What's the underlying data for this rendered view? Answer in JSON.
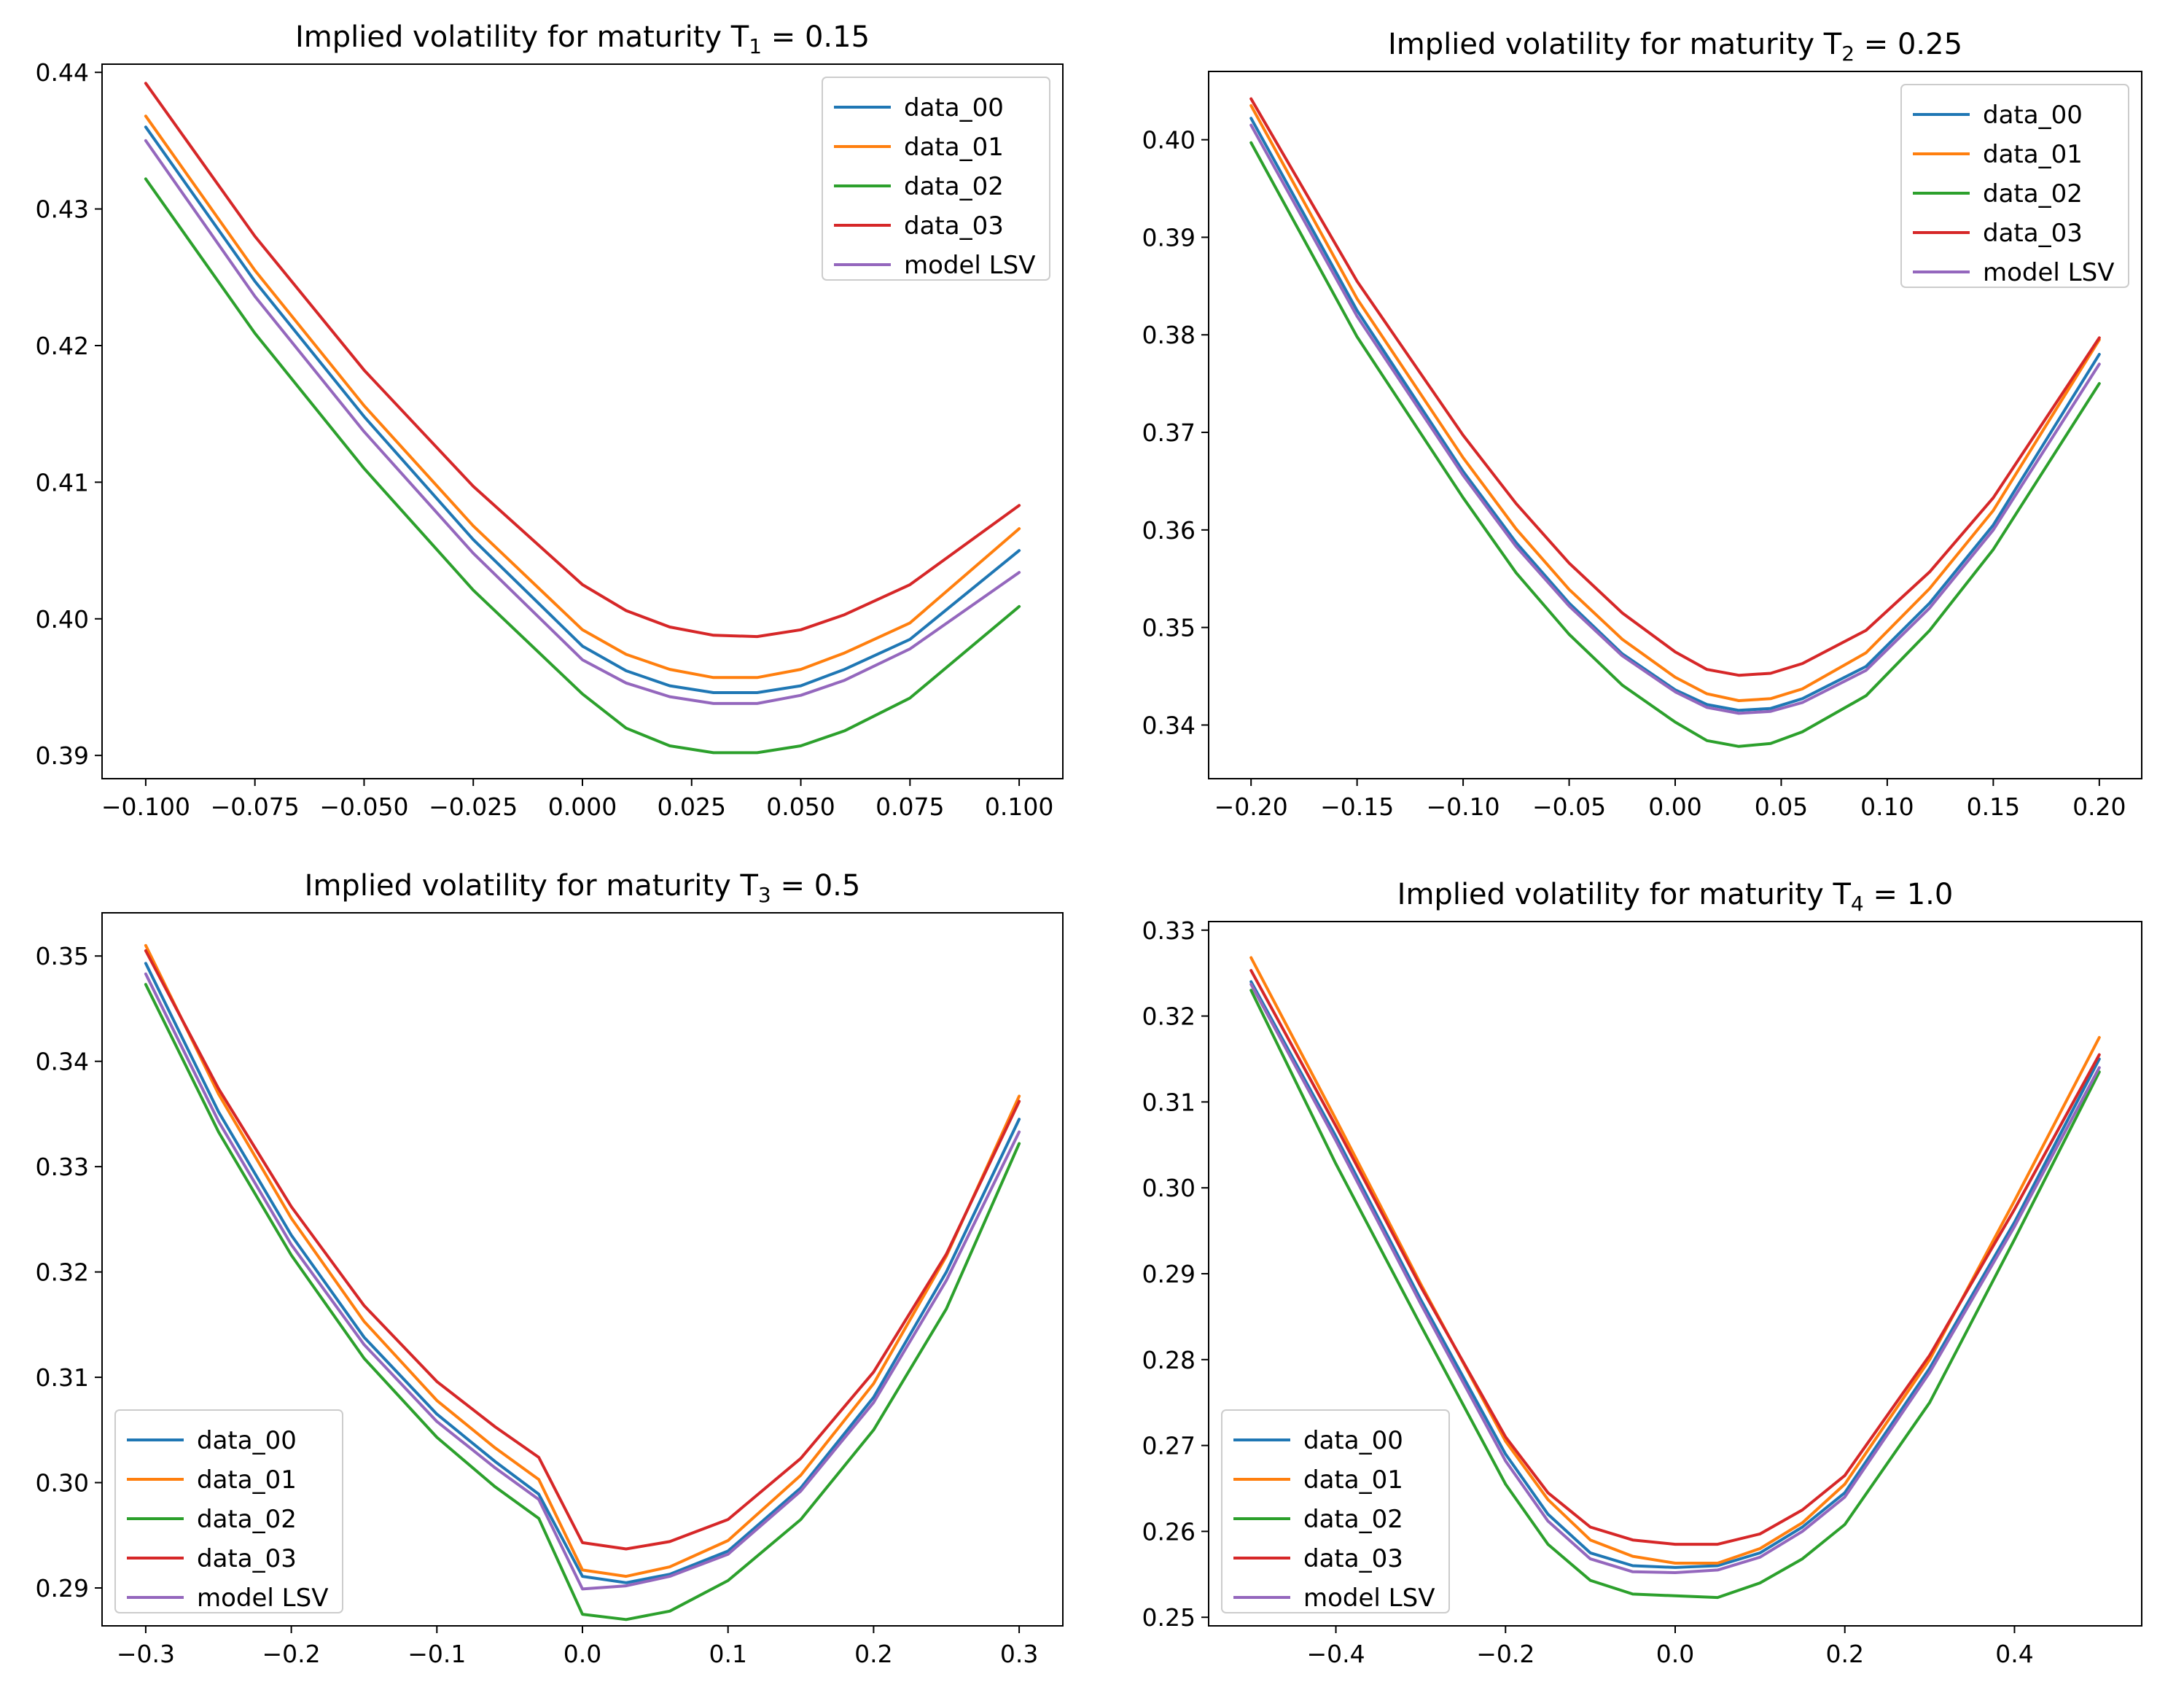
{
  "colors": {
    "data_00": "#1f77b4",
    "data_01": "#ff7f0e",
    "data_02": "#2ca02c",
    "data_03": "#d62728",
    "model_LSV": "#9467bd",
    "axes": "#000000",
    "legend_border": "#cccccc"
  },
  "chart_data": [
    {
      "type": "line",
      "title": "Implied volatility for maturity T",
      "title_sub": "1",
      "title_value": " = 0.15",
      "xlabel": "",
      "ylabel": "",
      "xlim": [
        -0.11,
        0.11
      ],
      "ylim": [
        0.3883,
        0.4406
      ],
      "xticks": [
        -0.1,
        -0.075,
        -0.05,
        -0.025,
        0.0,
        0.025,
        0.05,
        0.075,
        0.1
      ],
      "xtick_labels": [
        "−0.100",
        "−0.075",
        "−0.050",
        "−0.025",
        "0.000",
        "0.025",
        "0.050",
        "0.075",
        "0.100"
      ],
      "yticks": [
        0.39,
        0.4,
        0.41,
        0.42,
        0.43,
        0.44
      ],
      "ytick_labels": [
        "0.39",
        "0.40",
        "0.41",
        "0.42",
        "0.43",
        "0.44"
      ],
      "legend": "top-right",
      "series": [
        {
          "name": "data_00",
          "key": "data_00",
          "x": [
            -0.1,
            -0.075,
            -0.05,
            -0.025,
            0.0,
            0.01,
            0.02,
            0.03,
            0.04,
            0.05,
            0.06,
            0.075,
            0.1
          ],
          "y": [
            0.436,
            0.4247,
            0.4148,
            0.4058,
            0.398,
            0.3962,
            0.3951,
            0.3946,
            0.3946,
            0.3951,
            0.3963,
            0.3985,
            0.405
          ]
        },
        {
          "name": "data_01",
          "key": "data_01",
          "x": [
            -0.1,
            -0.075,
            -0.05,
            -0.025,
            0.0,
            0.01,
            0.02,
            0.03,
            0.04,
            0.05,
            0.06,
            0.075,
            0.1
          ],
          "y": [
            0.4368,
            0.4255,
            0.4156,
            0.4068,
            0.3992,
            0.3974,
            0.3963,
            0.3957,
            0.3957,
            0.3963,
            0.3975,
            0.3997,
            0.4066
          ]
        },
        {
          "name": "data_02",
          "key": "data_02",
          "x": [
            -0.1,
            -0.075,
            -0.05,
            -0.025,
            0.0,
            0.01,
            0.02,
            0.03,
            0.04,
            0.05,
            0.06,
            0.075,
            0.1
          ],
          "y": [
            0.4322,
            0.4209,
            0.411,
            0.4021,
            0.3945,
            0.392,
            0.3907,
            0.3902,
            0.3902,
            0.3907,
            0.3918,
            0.3942,
            0.4009
          ]
        },
        {
          "name": "data_03",
          "key": "data_03",
          "x": [
            -0.1,
            -0.075,
            -0.05,
            -0.025,
            0.0,
            0.01,
            0.02,
            0.03,
            0.04,
            0.05,
            0.06,
            0.075,
            0.1
          ],
          "y": [
            0.4392,
            0.428,
            0.4182,
            0.4097,
            0.4025,
            0.4006,
            0.3994,
            0.3988,
            0.3987,
            0.3992,
            0.4003,
            0.4025,
            0.4083
          ]
        },
        {
          "name": "model LSV",
          "key": "model_LSV",
          "x": [
            -0.1,
            -0.075,
            -0.05,
            -0.025,
            0.0,
            0.01,
            0.02,
            0.03,
            0.04,
            0.05,
            0.06,
            0.075,
            0.1
          ],
          "y": [
            0.435,
            0.4236,
            0.4137,
            0.4048,
            0.397,
            0.3953,
            0.3943,
            0.3938,
            0.3938,
            0.3944,
            0.3955,
            0.3978,
            0.4034
          ]
        }
      ]
    },
    {
      "type": "line",
      "title": "Implied volatility for maturity T",
      "title_sub": "2",
      "title_value": " = 0.25",
      "xlabel": "",
      "ylabel": "",
      "xlim": [
        -0.22,
        0.22
      ],
      "ylim": [
        0.3345,
        0.407
      ],
      "xticks": [
        -0.2,
        -0.15,
        -0.1,
        -0.05,
        0.0,
        0.05,
        0.1,
        0.15,
        0.2
      ],
      "xtick_labels": [
        "−0.20",
        "−0.15",
        "−0.10",
        "−0.05",
        "0.00",
        "0.05",
        "0.10",
        "0.15",
        "0.20"
      ],
      "yticks": [
        0.34,
        0.35,
        0.36,
        0.37,
        0.38,
        0.39,
        0.4
      ],
      "ytick_labels": [
        "0.34",
        "0.35",
        "0.36",
        "0.37",
        "0.38",
        "0.39",
        "0.40"
      ],
      "legend": "top-right",
      "series": [
        {
          "name": "data_00",
          "key": "data_00",
          "x": [
            -0.2,
            -0.15,
            -0.1,
            -0.075,
            -0.05,
            -0.025,
            0.0,
            0.015,
            0.03,
            0.045,
            0.06,
            0.09,
            0.12,
            0.15,
            0.2
          ],
          "y": [
            0.4022,
            0.3825,
            0.366,
            0.3587,
            0.3525,
            0.3473,
            0.3436,
            0.3421,
            0.3415,
            0.3417,
            0.3427,
            0.346,
            0.3525,
            0.3605,
            0.378
          ]
        },
        {
          "name": "data_01",
          "key": "data_01",
          "x": [
            -0.2,
            -0.15,
            -0.1,
            -0.075,
            -0.05,
            -0.025,
            0.0,
            0.015,
            0.03,
            0.045,
            0.06,
            0.09,
            0.12,
            0.15,
            0.2
          ],
          "y": [
            0.4035,
            0.3837,
            0.3674,
            0.3601,
            0.3539,
            0.3488,
            0.3449,
            0.3432,
            0.3425,
            0.3427,
            0.3437,
            0.3474,
            0.354,
            0.362,
            0.3795
          ]
        },
        {
          "name": "data_02",
          "key": "data_02",
          "x": [
            -0.2,
            -0.15,
            -0.1,
            -0.075,
            -0.05,
            -0.025,
            0.0,
            0.015,
            0.03,
            0.045,
            0.06,
            0.09,
            0.12,
            0.15,
            0.2
          ],
          "y": [
            0.3997,
            0.3798,
            0.3633,
            0.3556,
            0.3493,
            0.3441,
            0.3403,
            0.3384,
            0.3378,
            0.3381,
            0.3393,
            0.343,
            0.3497,
            0.358,
            0.375
          ]
        },
        {
          "name": "data_03",
          "key": "data_03",
          "x": [
            -0.2,
            -0.15,
            -0.1,
            -0.075,
            -0.05,
            -0.025,
            0.0,
            0.015,
            0.03,
            0.045,
            0.06,
            0.09,
            0.12,
            0.15,
            0.2
          ],
          "y": [
            0.4042,
            0.3855,
            0.3697,
            0.3627,
            0.3566,
            0.3515,
            0.3475,
            0.3457,
            0.3451,
            0.3453,
            0.3463,
            0.3497,
            0.3557,
            0.3633,
            0.3797
          ]
        },
        {
          "name": "model LSV",
          "key": "model_LSV",
          "x": [
            -0.2,
            -0.15,
            -0.1,
            -0.075,
            -0.05,
            -0.025,
            0.0,
            0.015,
            0.03,
            0.045,
            0.06,
            0.09,
            0.12,
            0.15,
            0.2
          ],
          "y": [
            0.4015,
            0.3819,
            0.3656,
            0.3583,
            0.3522,
            0.3471,
            0.3434,
            0.3418,
            0.3412,
            0.3414,
            0.3423,
            0.3456,
            0.352,
            0.36,
            0.377
          ]
        }
      ]
    },
    {
      "type": "line",
      "title": "Implied volatility for maturity T",
      "title_sub": "3",
      "title_value": " = 0.5",
      "xlabel": "",
      "ylabel": "",
      "xlim": [
        -0.33,
        0.33
      ],
      "ylim": [
        0.2864,
        0.3541
      ],
      "xticks": [
        -0.3,
        -0.2,
        -0.1,
        0.0,
        0.1,
        0.2,
        0.3
      ],
      "xtick_labels": [
        "−0.3",
        "−0.2",
        "−0.1",
        "0.0",
        "0.1",
        "0.2",
        "0.3"
      ],
      "yticks": [
        0.29,
        0.3,
        0.31,
        0.32,
        0.33,
        0.34,
        0.35
      ],
      "ytick_labels": [
        "0.29",
        "0.30",
        "0.31",
        "0.32",
        "0.33",
        "0.34",
        "0.35"
      ],
      "legend": "bottom-left",
      "series": [
        {
          "name": "data_00",
          "key": "data_00",
          "x": [
            -0.3,
            -0.25,
            -0.2,
            -0.15,
            -0.1,
            -0.06,
            -0.03,
            0.0,
            0.03,
            0.06,
            0.1,
            0.15,
            0.2,
            0.25,
            0.3
          ],
          "y": [
            0.3493,
            0.3352,
            0.3235,
            0.3138,
            0.3065,
            0.302,
            0.2989,
            0.2911,
            0.2905,
            0.2913,
            0.2935,
            0.2995,
            0.3081,
            0.32,
            0.3345
          ]
        },
        {
          "name": "data_01",
          "key": "data_01",
          "x": [
            -0.3,
            -0.25,
            -0.2,
            -0.15,
            -0.1,
            -0.06,
            -0.03,
            0.0,
            0.03,
            0.06,
            0.1,
            0.15,
            0.2,
            0.25,
            0.3
          ],
          "y": [
            0.351,
            0.3369,
            0.3251,
            0.3153,
            0.3078,
            0.3033,
            0.3003,
            0.2917,
            0.2911,
            0.292,
            0.2945,
            0.3007,
            0.3094,
            0.3215,
            0.3367
          ]
        },
        {
          "name": "data_02",
          "key": "data_02",
          "x": [
            -0.3,
            -0.25,
            -0.2,
            -0.15,
            -0.1,
            -0.06,
            -0.03,
            0.0,
            0.03,
            0.06,
            0.1,
            0.15,
            0.2,
            0.25,
            0.3
          ],
          "y": [
            0.3473,
            0.3333,
            0.3216,
            0.3118,
            0.3043,
            0.2996,
            0.2966,
            0.2875,
            0.287,
            0.2878,
            0.2907,
            0.2965,
            0.305,
            0.3165,
            0.3322
          ]
        },
        {
          "name": "data_03",
          "key": "data_03",
          "x": [
            -0.3,
            -0.25,
            -0.2,
            -0.15,
            -0.1,
            -0.06,
            -0.03,
            0.0,
            0.03,
            0.06,
            0.1,
            0.15,
            0.2,
            0.25,
            0.3
          ],
          "y": [
            0.3505,
            0.3374,
            0.3262,
            0.3168,
            0.3096,
            0.3053,
            0.3024,
            0.2943,
            0.2937,
            0.2944,
            0.2965,
            0.3023,
            0.3105,
            0.3217,
            0.3362
          ]
        },
        {
          "name": "model LSV",
          "key": "model_LSV",
          "x": [
            -0.3,
            -0.25,
            -0.2,
            -0.15,
            -0.1,
            -0.06,
            -0.03,
            0.0,
            0.03,
            0.06,
            0.1,
            0.15,
            0.2,
            0.25,
            0.3
          ],
          "y": [
            0.3483,
            0.3343,
            0.3226,
            0.3131,
            0.3058,
            0.3014,
            0.2984,
            0.2899,
            0.2902,
            0.2911,
            0.2932,
            0.2992,
            0.3076,
            0.3192,
            0.3333
          ]
        }
      ]
    },
    {
      "type": "line",
      "title": "Implied volatility for maturity T",
      "title_sub": "4",
      "title_value": " = 1.0",
      "xlabel": "",
      "ylabel": "",
      "xlim": [
        -0.55,
        0.55
      ],
      "ylim": [
        0.249,
        0.331
      ],
      "xticks": [
        -0.4,
        -0.2,
        0.0,
        0.2,
        0.4
      ],
      "xtick_labels": [
        "−0.4",
        "−0.2",
        "0.0",
        "0.2",
        "0.4"
      ],
      "yticks": [
        0.25,
        0.26,
        0.27,
        0.28,
        0.29,
        0.3,
        0.31,
        0.32,
        0.33
      ],
      "ytick_labels": [
        "0.25",
        "0.26",
        "0.27",
        "0.28",
        "0.29",
        "0.30",
        "0.31",
        "0.32",
        "0.33"
      ],
      "legend": "bottom-left",
      "series": [
        {
          "name": "data_00",
          "key": "data_00",
          "x": [
            -0.5,
            -0.4,
            -0.3,
            -0.2,
            -0.15,
            -0.1,
            -0.05,
            0.0,
            0.05,
            0.1,
            0.15,
            0.2,
            0.3,
            0.4,
            0.5
          ],
          "y": [
            0.324,
            0.306,
            0.287,
            0.269,
            0.262,
            0.2575,
            0.256,
            0.2558,
            0.256,
            0.2575,
            0.2605,
            0.2645,
            0.279,
            0.296,
            0.315
          ]
        },
        {
          "name": "data_01",
          "key": "data_01",
          "x": [
            -0.5,
            -0.4,
            -0.3,
            -0.2,
            -0.15,
            -0.1,
            -0.05,
            0.0,
            0.05,
            0.1,
            0.15,
            0.2,
            0.3,
            0.4,
            0.5
          ],
          "y": [
            0.3268,
            0.308,
            0.2888,
            0.2705,
            0.2637,
            0.259,
            0.2571,
            0.2563,
            0.2563,
            0.258,
            0.261,
            0.2655,
            0.28,
            0.2985,
            0.3175
          ]
        },
        {
          "name": "data_02",
          "key": "data_02",
          "x": [
            -0.5,
            -0.4,
            -0.3,
            -0.2,
            -0.15,
            -0.1,
            -0.05,
            0.0,
            0.05,
            0.1,
            0.15,
            0.2,
            0.3,
            0.4,
            0.5
          ],
          "y": [
            0.323,
            0.3028,
            0.284,
            0.2655,
            0.2585,
            0.2543,
            0.2527,
            0.2525,
            0.2523,
            0.254,
            0.2568,
            0.2608,
            0.275,
            0.294,
            0.3135
          ]
        },
        {
          "name": "data_03",
          "key": "data_03",
          "x": [
            -0.5,
            -0.4,
            -0.3,
            -0.2,
            -0.15,
            -0.1,
            -0.05,
            0.0,
            0.05,
            0.1,
            0.15,
            0.2,
            0.3,
            0.4,
            0.5
          ],
          "y": [
            0.3253,
            0.3072,
            0.2885,
            0.271,
            0.2645,
            0.2605,
            0.259,
            0.2585,
            0.2585,
            0.2597,
            0.2625,
            0.2665,
            0.2805,
            0.2975,
            0.3155
          ]
        },
        {
          "name": "model LSV",
          "key": "model_LSV",
          "x": [
            -0.5,
            -0.4,
            -0.3,
            -0.2,
            -0.15,
            -0.1,
            -0.05,
            0.0,
            0.05,
            0.1,
            0.15,
            0.2,
            0.3,
            0.4,
            0.5
          ],
          "y": [
            0.3237,
            0.3055,
            0.2865,
            0.2682,
            0.2612,
            0.2568,
            0.2553,
            0.2552,
            0.2555,
            0.257,
            0.26,
            0.264,
            0.2785,
            0.2955,
            0.314
          ]
        }
      ]
    }
  ]
}
